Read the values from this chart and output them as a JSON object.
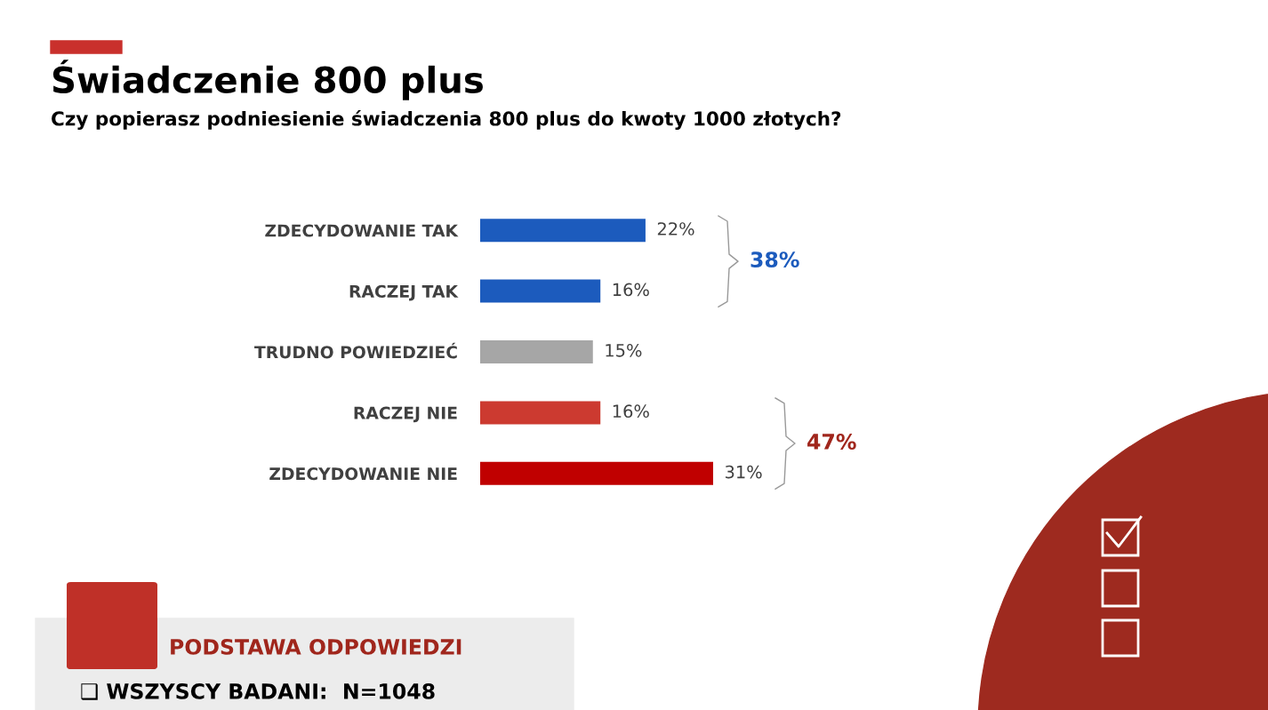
{
  "chart_data": {
    "type": "bar",
    "orientation": "horizontal",
    "title": "Świadczenie 800 plus",
    "subtitle": "Czy popierasz podniesienie świadczenia 800 plus do kwoty 1000 złotych?",
    "categories": [
      "ZDECYDOWANIE TAK",
      "RACZEJ TAK",
      "TRUDNO POWIEDZIEĆ",
      "RACZEJ NIE",
      "ZDECYDOWANIE NIE"
    ],
    "values": [
      22,
      16,
      15,
      16,
      31
    ],
    "colors": [
      "#1c5bbd",
      "#1c5bbd",
      "#a6a6a6",
      "#cc3a30",
      "#c00000"
    ],
    "value_labels": [
      "22%",
      "16%",
      "15%",
      "16%",
      "31%"
    ],
    "annotations": [
      "38%",
      "47%",
      "PODSTAWA ODPOWIEDZI",
      "❑ WSZYSCY BADANI:  N=1048"
    ],
    "grid": false,
    "legend": false
  }
}
